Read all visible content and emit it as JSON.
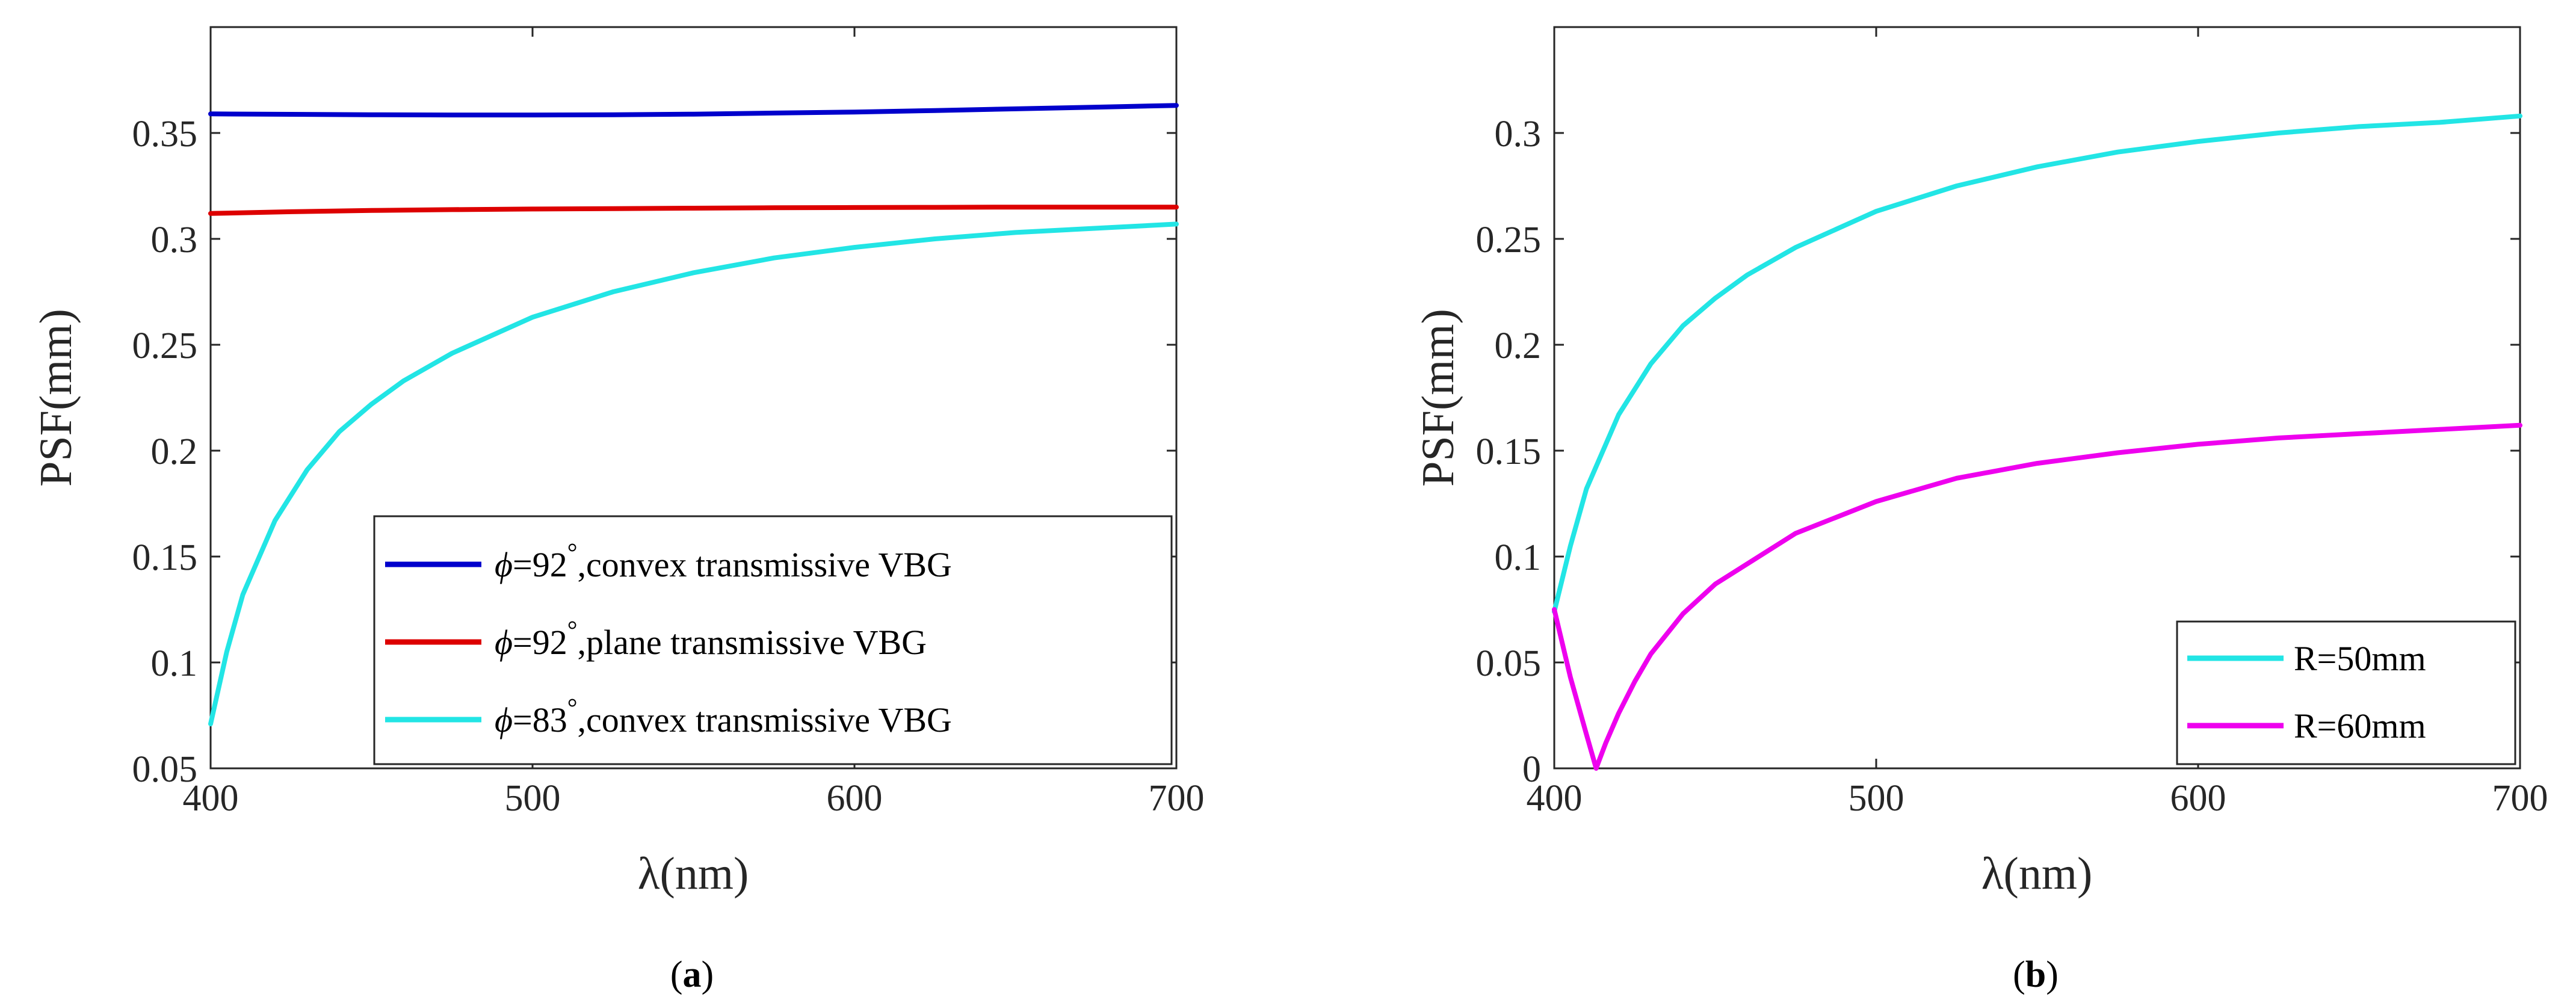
{
  "chart_data": [
    {
      "type": "line",
      "panel": "a",
      "caption_open": "(",
      "caption_letter": "a",
      "caption_close": ")",
      "xlabel": "λ(nm)",
      "ylabel": "PSF(mm)",
      "xlim": [
        400,
        700
      ],
      "ylim": [
        0.05,
        0.4
      ],
      "xticks": [
        400,
        500,
        600,
        700
      ],
      "xtick_labels": [
        "400",
        "500",
        "600",
        "700"
      ],
      "yticks": [
        0.05,
        0.1,
        0.15,
        0.2,
        0.25,
        0.3,
        0.35
      ],
      "ytick_labels": [
        "0.05",
        "0.1",
        "0.15",
        "0.2",
        "0.25",
        "0.3",
        "0.35"
      ],
      "grid": false,
      "legend_position": "bottom-right",
      "series": [
        {
          "name": "ϕ=92°,convex transmissive VBG",
          "legend_symbol": "ϕ",
          "legend_value": "=92",
          "legend_degree": "°",
          "legend_text": ",convex transmissive VBG",
          "color": "#0000cc",
          "x": [
            400,
            425,
            450,
            475,
            500,
            525,
            550,
            575,
            600,
            625,
            650,
            675,
            700
          ],
          "y": [
            0.359,
            0.3588,
            0.3586,
            0.3585,
            0.3585,
            0.3586,
            0.3589,
            0.3594,
            0.3599,
            0.3606,
            0.3614,
            0.3622,
            0.363
          ]
        },
        {
          "name": "ϕ=92°,plane transmissive VBG",
          "legend_symbol": "ϕ",
          "legend_value": "=92",
          "legend_degree": "°",
          "legend_text": ",plane transmissive VBG",
          "color": "#dd0000",
          "x": [
            400,
            425,
            450,
            475,
            500,
            525,
            550,
            575,
            600,
            625,
            650,
            675,
            700
          ],
          "y": [
            0.312,
            0.3128,
            0.3134,
            0.3138,
            0.3141,
            0.3143,
            0.3145,
            0.3147,
            0.3148,
            0.3149,
            0.315,
            0.315,
            0.315
          ]
        },
        {
          "name": "ϕ=83°,convex transmissive VBG",
          "legend_symbol": "ϕ",
          "legend_value": "=83",
          "legend_degree": "°",
          "legend_text": ",convex transmissive VBG",
          "color": "#22e5e5",
          "x": [
            400,
            405,
            410,
            420,
            430,
            440,
            450,
            460,
            475,
            500,
            525,
            550,
            575,
            600,
            625,
            650,
            675,
            700
          ],
          "y": [
            0.071,
            0.105,
            0.132,
            0.167,
            0.191,
            0.209,
            0.222,
            0.233,
            0.246,
            0.263,
            0.275,
            0.284,
            0.291,
            0.296,
            0.3,
            0.303,
            0.305,
            0.307
          ]
        }
      ]
    },
    {
      "type": "line",
      "panel": "b",
      "caption_open": "(",
      "caption_letter": "b",
      "caption_close": ")",
      "xlabel": "λ(nm)",
      "ylabel": "PSF(mm)",
      "xlim": [
        400,
        700
      ],
      "ylim": [
        0,
        0.35
      ],
      "xticks": [
        400,
        500,
        600,
        700
      ],
      "xtick_labels": [
        "400",
        "500",
        "600",
        "700"
      ],
      "yticks": [
        0,
        0.05,
        0.1,
        0.15,
        0.2,
        0.25,
        0.3
      ],
      "ytick_labels": [
        "0",
        "0.05",
        "0.1",
        "0.15",
        "0.2",
        "0.25",
        "0.3"
      ],
      "grid": false,
      "legend_position": "bottom-right",
      "series": [
        {
          "name": "R=50mm",
          "color": "#22e5e5",
          "x": [
            400,
            405,
            410,
            420,
            430,
            440,
            450,
            460,
            475,
            500,
            525,
            550,
            575,
            600,
            625,
            650,
            675,
            700
          ],
          "y": [
            0.074,
            0.105,
            0.132,
            0.167,
            0.191,
            0.209,
            0.222,
            0.233,
            0.246,
            0.263,
            0.275,
            0.284,
            0.291,
            0.296,
            0.3,
            0.303,
            0.305,
            0.308
          ]
        },
        {
          "name": "R=60mm",
          "color": "#ee00ee",
          "x": [
            400,
            405,
            410,
            413,
            416,
            420,
            425,
            430,
            440,
            450,
            475,
            500,
            525,
            550,
            575,
            600,
            625,
            650,
            675,
            700
          ],
          "y": [
            0.075,
            0.043,
            0.016,
            0.0,
            0.012,
            0.026,
            0.041,
            0.054,
            0.073,
            0.087,
            0.111,
            0.126,
            0.137,
            0.144,
            0.149,
            0.153,
            0.156,
            0.158,
            0.16,
            0.162
          ]
        }
      ]
    }
  ]
}
